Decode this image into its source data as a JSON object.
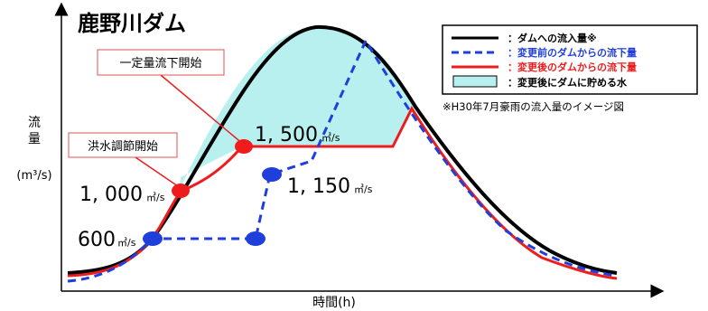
{
  "title": "鹿野川ダム",
  "axes": {
    "y_label": [
      "流",
      "量",
      "(m³/s)"
    ],
    "x_label": "時間(h)"
  },
  "legend": {
    "items": [
      {
        "key": "inflow",
        "label": "：ダムへの流入量※",
        "color": "#000000",
        "style": "solid"
      },
      {
        "key": "before",
        "label": "：変更前のダムからの流下量",
        "color": "#1f3fdb",
        "style": "dashed"
      },
      {
        "key": "after",
        "label": "：変更後のダムからの流下量",
        "color": "#ee1c1c",
        "style": "solid"
      },
      {
        "key": "storage",
        "label": "：変更後にダムに貯める水",
        "color": "#b8f0f0",
        "style": "fill"
      }
    ],
    "note": "※H30年7月豪雨の流入量のイメージ図"
  },
  "callouts": [
    {
      "key": "const",
      "label": "一定量流下開始"
    },
    {
      "key": "flood",
      "label": "洪水調節開始"
    }
  ],
  "values": [
    {
      "key": "v1500",
      "number": "1, 500",
      "unit": "㎥/s"
    },
    {
      "key": "v1000",
      "number": "1, 000",
      "unit": "㎥/s"
    },
    {
      "key": "v1150",
      "number": "1, 150",
      "unit": "㎥/s"
    },
    {
      "key": "v600",
      "number": "600",
      "unit": "㎥/s"
    }
  ],
  "colors": {
    "inflow": "#000000",
    "before": "#1f3fdb",
    "after": "#ee1c1c",
    "storage": "#b8f0f0",
    "callout_border": "#e05050"
  }
}
